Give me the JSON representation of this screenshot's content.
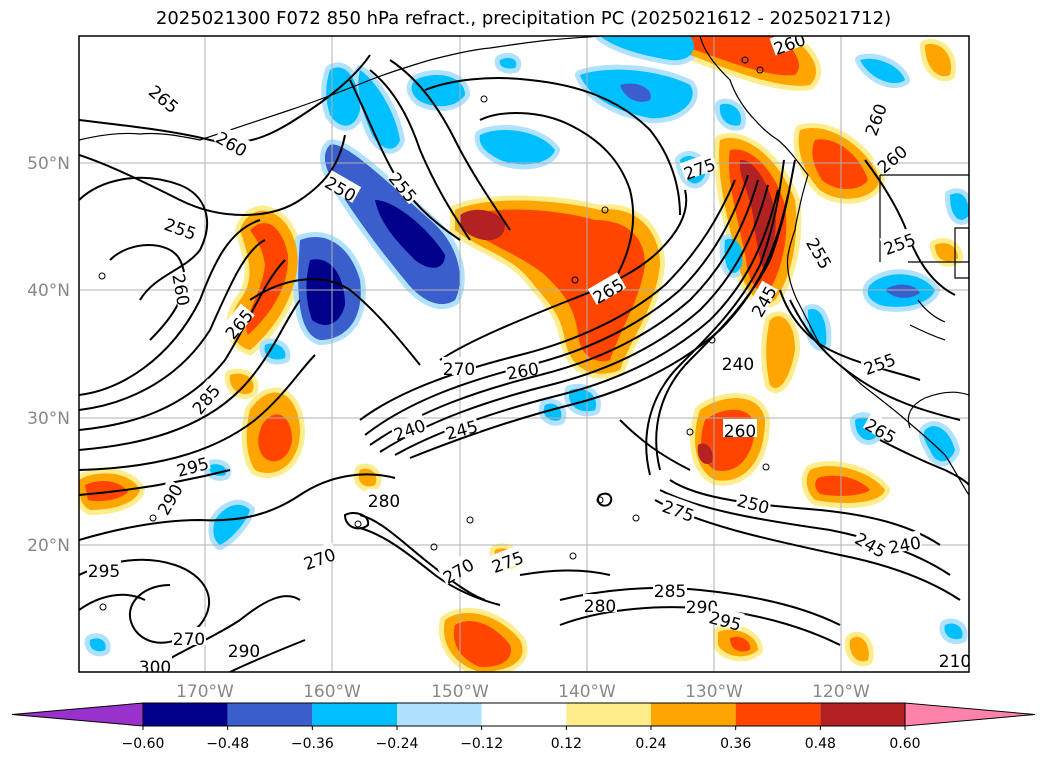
{
  "title": "2025021300 F072 850 hPa refract., precipitation PC (2025021612 - 2025021712)",
  "chart_data": {
    "type": "heatmap",
    "title": "2025021300 F072 850 hPa refract., precipitation PC (2025021612 - 2025021712)",
    "lat_ticks": [
      "20°N",
      "30°N",
      "40°N",
      "50°N"
    ],
    "lon_ticks": [
      "170°W",
      "160°W",
      "150°W",
      "140°W",
      "130°W",
      "120°W"
    ],
    "lon_range": [
      -180,
      -110
    ],
    "lat_range": [
      10,
      60
    ],
    "colorbar": {
      "ticks": [
        "−0.60",
        "−0.48",
        "−0.36",
        "−0.24",
        "−0.12",
        "0.12",
        "0.24",
        "0.36",
        "0.48",
        "0.60"
      ],
      "colors": [
        "#9932cc",
        "#00008b",
        "#3a5fcd",
        "#00bfff",
        "#b0e2ff",
        "#ffffff",
        "#ffec8b",
        "#ffa500",
        "#ff4500",
        "#b22222",
        "#ff82ab"
      ]
    },
    "contour_labels": [
      "265",
      "260",
      "250",
      "255",
      "255",
      "260",
      "265",
      "285",
      "295",
      "290",
      "295",
      "270",
      "270",
      "300",
      "290",
      "280",
      "270",
      "275",
      "270",
      "260",
      "240",
      "245",
      "265",
      "275",
      "260",
      "285",
      "280",
      "290",
      "295",
      "275",
      "250",
      "245",
      "240",
      "260",
      "240",
      "255",
      "255",
      "255",
      "265",
      "260",
      "260",
      "245",
      "210"
    ]
  }
}
